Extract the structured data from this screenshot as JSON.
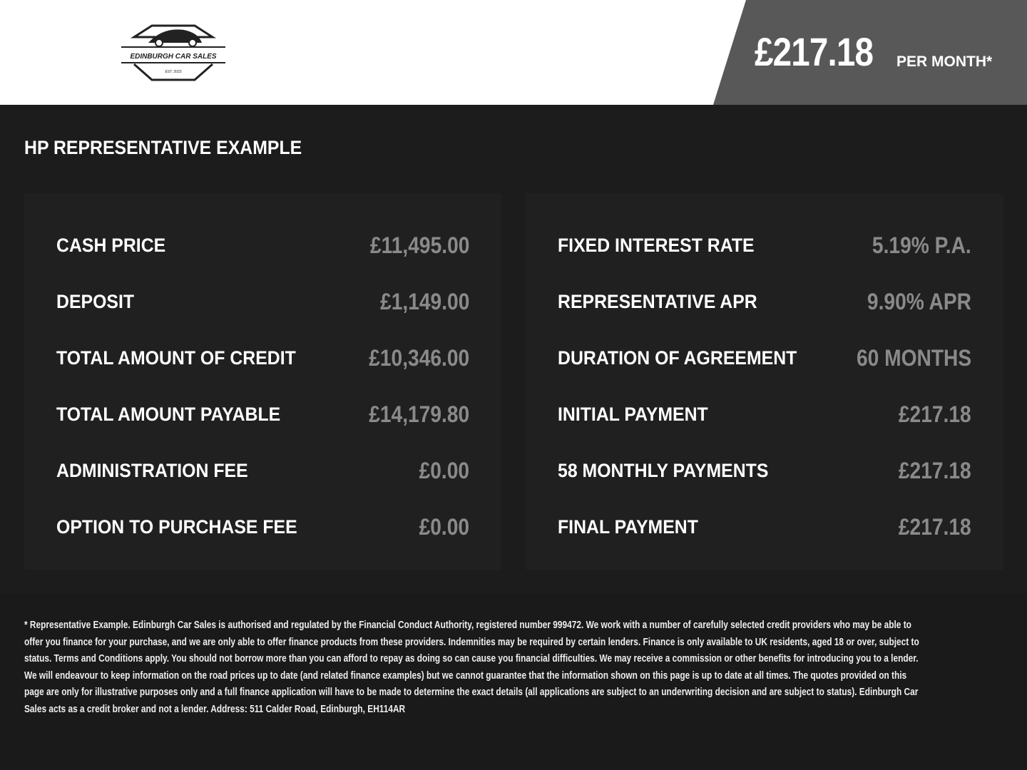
{
  "header": {
    "logo_text": "EDINBURGH CAR SALES",
    "logo_est": "EST. 2023",
    "monthly_price": "£217.18",
    "per_month_label": "PER MONTH*"
  },
  "section_title": "HP REPRESENTATIVE EXAMPLE",
  "left_panel": [
    {
      "label": "CASH PRICE",
      "value": "£11,495.00"
    },
    {
      "label": "DEPOSIT",
      "value": "£1,149.00"
    },
    {
      "label": "TOTAL AMOUNT OF CREDIT",
      "value": "£10,346.00"
    },
    {
      "label": "TOTAL AMOUNT PAYABLE",
      "value": "£14,179.80"
    },
    {
      "label": "ADMINISTRATION FEE",
      "value": "£0.00"
    },
    {
      "label": "OPTION TO PURCHASE FEE",
      "value": "£0.00"
    }
  ],
  "right_panel": [
    {
      "label": "FIXED INTEREST RATE",
      "value": "5.19% P.A."
    },
    {
      "label": "REPRESENTATIVE APR",
      "value": "9.90% APR"
    },
    {
      "label": "DURATION OF AGREEMENT",
      "value": "60 MONTHS"
    },
    {
      "label": "INITIAL PAYMENT",
      "value": "£217.18"
    },
    {
      "label": "58 MONTHLY PAYMENTS",
      "value": "£217.18"
    },
    {
      "label": "FINAL PAYMENT",
      "value": "£217.18"
    }
  ],
  "disclaimer": "* Representative Example. Edinburgh Car Sales is authorised and regulated by the Financial Conduct Authority, registered number 999472. We work with a number of carefully selected credit providers who may be able to offer you finance for your purchase, and we are only able to offer finance products from these providers. Indemnities may be required by certain lenders. Finance is only available to UK residents, aged 18 or over, subject to status. Terms and Conditions apply. You should not borrow more than you can afford to repay as doing so can cause you financial difficulties. We may receive a commission or other benefits for introducing you to a lender. We will endeavour to keep information on the road prices up to date (and related finance examples) but we cannot guarantee that the information shown on this page is up to date at all times. The quotes provided on this page are only for illustrative purposes only and a full finance application will have to be made to determine the exact details (all applications are subject to an underwriting decision and are subject to status). Edinburgh Car Sales acts as a credit broker and not a lender. Address: 511 Calder Road, Edinburgh, EH114AR"
}
